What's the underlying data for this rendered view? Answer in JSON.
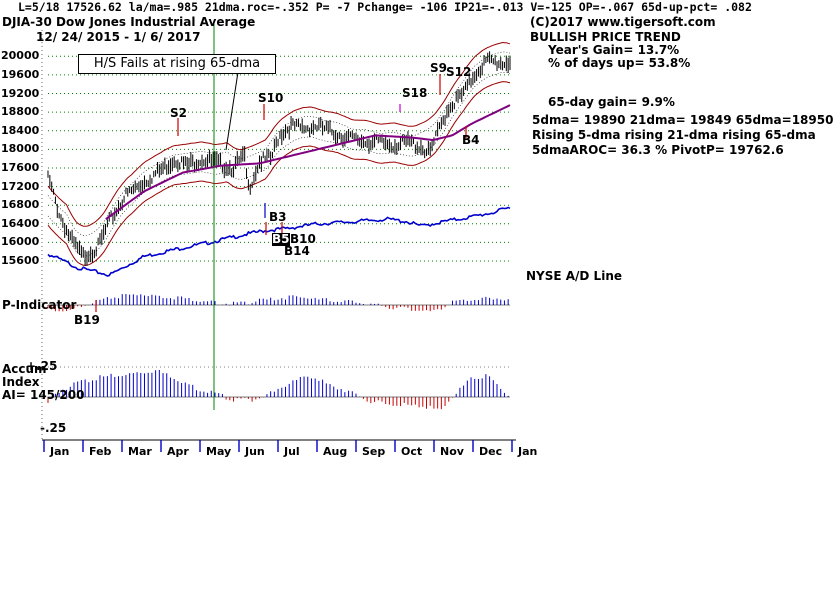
{
  "header": {
    "line1": "L=5/18   17526.62  la/ma=.985 21dma.roc=-.352  P= -7  Pchange= -106  IP21=-.013  V=-125  OP=-.067  65d-up-pct= .082",
    "title": "DJIA-30   Dow Jones Industrial Average",
    "date_range": "12/ 24/ 2015 -  1/ 6/ 2017"
  },
  "info_box": {
    "copyright": "(C)2017 www.tigersoft.com",
    "trend": "BULLISH PRICE TREND",
    "years_gain": "Year's Gain= 13.7%",
    "pct_days_up": "% of days up= 53.8%",
    "gain_65day": "65-day gain= 9.9%",
    "dma_values": "5dma= 19890  21dma= 19849  65dma=18950",
    "rising": "Rising 5-dma  rising 21-dma  rising 65-dma",
    "aroc_pivot": "5dmaAROC= 36.3  %   PivotP= 19762.6"
  },
  "callout": "H/S Fails at rising 65-dma",
  "panels": {
    "ad_line_label": "NYSE A/D Line",
    "p_indicator_label": "P-Indicator",
    "accum_label_1": "Accum",
    "accum_label_2": "Index",
    "accum_ai": "AI= 145/200",
    "accum_top": "+.25",
    "accum_bottom": "-.25"
  },
  "signals": [
    {
      "label": "S2",
      "kind": "sell"
    },
    {
      "label": "S10",
      "kind": "sell"
    },
    {
      "label": "S18",
      "kind": "sell"
    },
    {
      "label": "S9",
      "kind": "sell"
    },
    {
      "label": "S12",
      "kind": "sell"
    },
    {
      "label": "B3",
      "kind": "buy"
    },
    {
      "label": "B14",
      "kind": "buy"
    },
    {
      "label": "B4",
      "kind": "buy"
    },
    {
      "label": "B19",
      "kind": "buy"
    },
    {
      "label": "B10",
      "kind": "buy"
    },
    {
      "label": "B5",
      "kind": "buy"
    }
  ],
  "colors": {
    "price_bars": "#000000",
    "ma65": "#800080",
    "bands": "#990000",
    "ad_line": "#0000cc",
    "pos_bars": "#0000cc",
    "neg_bars": "#cc0000",
    "grid": "#008000",
    "vline": "#008000"
  },
  "chart_data": {
    "type": "line",
    "title": "DJIA-30 Dow Jones Industrial Average",
    "date_range": "12/24/2015 - 1/6/2017",
    "y_ticks": [
      15600,
      16000,
      16400,
      16800,
      17200,
      17600,
      18000,
      18400,
      18800,
      19200,
      19600,
      20000
    ],
    "ylim": [
      15300,
      20350
    ],
    "months": [
      "Jan",
      "Feb",
      "Mar",
      "Apr",
      "May",
      "Jun",
      "Jul",
      "Aug",
      "Sep",
      "Oct",
      "Nov",
      "Dec",
      "Jan"
    ],
    "price_anchors": {
      "x_month_index": [
        0,
        0.3,
        0.6,
        0.9,
        1.3,
        1.6,
        2.0,
        2.5,
        3.0,
        3.3,
        3.6,
        4.0,
        4.4,
        4.8,
        5.1,
        5.2,
        5.5,
        5.8,
        6.0,
        6.3,
        6.6,
        7.0,
        7.3,
        7.6,
        8.0,
        8.5,
        9.0,
        9.4,
        9.7,
        9.9,
        10.1,
        10.4,
        10.8,
        11.1,
        11.4,
        11.8,
        12.0
      ],
      "close": [
        17400,
        16600,
        16050,
        15700,
        15900,
        16450,
        17000,
        17300,
        17600,
        17800,
        17650,
        17800,
        17700,
        17600,
        17850,
        17150,
        17750,
        17800,
        18300,
        18500,
        18450,
        18500,
        18400,
        18300,
        18200,
        18150,
        18100,
        18150,
        18050,
        17900,
        18300,
        18900,
        19200,
        19650,
        19900,
        19850,
        19900
      ]
    },
    "ma65_anchors": {
      "x_month_index": [
        1.5,
        2.5,
        3.5,
        4.5,
        5.5,
        6.5,
        7.5,
        8.5,
        9.5,
        10.0,
        10.5,
        11.0,
        11.5,
        12.0
      ],
      "value": [
        16500,
        17100,
        17500,
        17650,
        17700,
        17900,
        18100,
        18300,
        18250,
        18200,
        18300,
        18550,
        18750,
        18950
      ]
    },
    "ad_line": {
      "x_month_index": [
        0,
        0.8,
        1.6,
        2.5,
        3.3,
        4.2,
        5.0,
        5.6,
        6.2,
        7.0,
        8.0,
        8.8,
        9.3,
        9.7,
        10.3,
        11.0,
        11.6,
        12.0
      ],
      "value": [
        15750,
        15450,
        15300,
        15700,
        15850,
        16000,
        16150,
        16250,
        16300,
        16400,
        16450,
        16500,
        16450,
        16350,
        16450,
        16550,
        16650,
        16750
      ]
    },
    "p_indicator": {
      "x_month_index": [
        0,
        0.5,
        1.0,
        1.5,
        2.0,
        2.5,
        3.0,
        3.5,
        4.0,
        4.5,
        5.0,
        5.5,
        6.0,
        6.5,
        7.0,
        7.5,
        8.0,
        8.5,
        9.0,
        9.5,
        10.0,
        10.5,
        11.0,
        11.5,
        12.0
      ],
      "value": [
        -0.3,
        -0.5,
        0.1,
        0.4,
        0.7,
        0.8,
        0.6,
        0.5,
        0.3,
        0.1,
        0.1,
        0.3,
        0.5,
        0.6,
        0.4,
        0.3,
        0.2,
        0.0,
        -0.2,
        -0.3,
        -0.5,
        0.2,
        0.4,
        0.5,
        0.4
      ]
    },
    "accum_index": {
      "x_month_index": [
        0,
        0.3,
        0.8,
        1.3,
        1.8,
        2.3,
        2.8,
        3.3,
        3.8,
        4.3,
        4.8,
        5.3,
        5.8,
        6.3,
        6.8,
        7.3,
        7.8,
        8.3,
        8.8,
        9.3,
        9.8,
        10.2,
        10.6,
        11.0,
        11.4,
        11.8,
        12.0
      ],
      "value": [
        -0.05,
        0.05,
        0.12,
        0.16,
        0.18,
        0.2,
        0.22,
        0.16,
        0.08,
        0.03,
        -0.02,
        -0.02,
        0.03,
        0.12,
        0.18,
        0.1,
        0.05,
        -0.03,
        -0.06,
        -0.07,
        -0.08,
        -0.12,
        0.04,
        0.15,
        0.18,
        0.06,
        0.0
      ]
    },
    "accum_range": [
      -0.25,
      0.25
    ]
  }
}
